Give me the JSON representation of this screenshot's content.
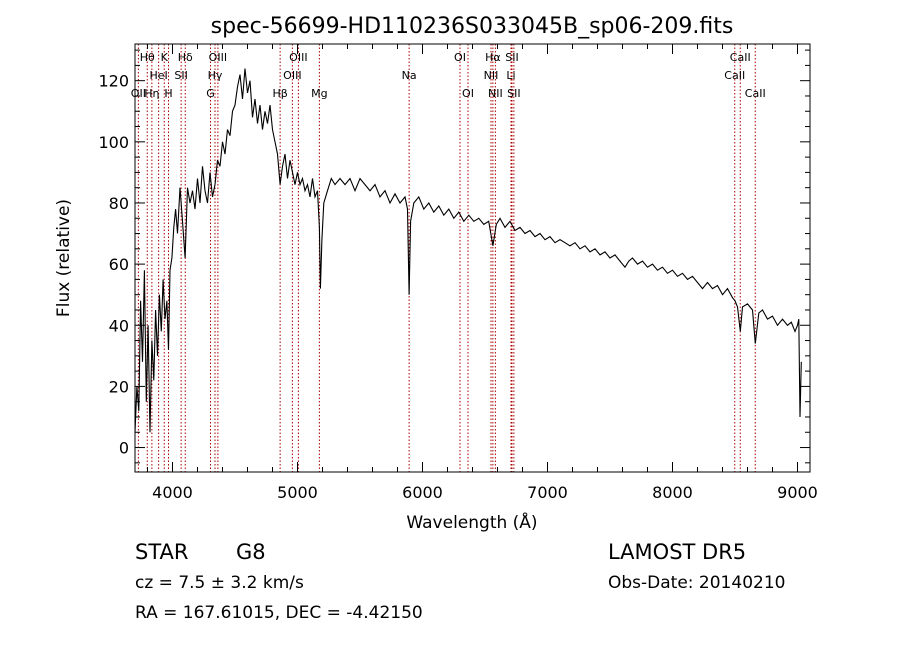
{
  "chart_data": {
    "type": "line",
    "title": "spec-56699-HD110236S033045B_sp06-209.fits",
    "xlabel": "Wavelength (Å)",
    "ylabel": "Flux (relative)",
    "xlim": [
      3700,
      9100
    ],
    "ylim": [
      -8,
      132
    ],
    "xticks": [
      4000,
      5000,
      6000,
      7000,
      8000,
      9000
    ],
    "yticks": [
      0,
      20,
      40,
      60,
      80,
      100,
      120
    ],
    "series": [
      {
        "color": "#000000",
        "points": [
          [
            3700,
            5
          ],
          [
            3715,
            20
          ],
          [
            3730,
            12
          ],
          [
            3745,
            48
          ],
          [
            3760,
            28
          ],
          [
            3775,
            58
          ],
          [
            3790,
            15
          ],
          [
            3805,
            40
          ],
          [
            3820,
            5
          ],
          [
            3835,
            35
          ],
          [
            3850,
            22
          ],
          [
            3865,
            45
          ],
          [
            3880,
            30
          ],
          [
            3895,
            50
          ],
          [
            3910,
            38
          ],
          [
            3925,
            55
          ],
          [
            3940,
            42
          ],
          [
            3955,
            48
          ],
          [
            3968,
            32
          ],
          [
            3980,
            58
          ],
          [
            3995,
            62
          ],
          [
            4010,
            72
          ],
          [
            4025,
            78
          ],
          [
            4040,
            70
          ],
          [
            4060,
            85
          ],
          [
            4080,
            74
          ],
          [
            4101,
            62
          ],
          [
            4120,
            85
          ],
          [
            4140,
            80
          ],
          [
            4160,
            84
          ],
          [
            4180,
            78
          ],
          [
            4200,
            88
          ],
          [
            4220,
            80
          ],
          [
            4240,
            92
          ],
          [
            4260,
            84
          ],
          [
            4280,
            80
          ],
          [
            4300,
            90
          ],
          [
            4320,
            82
          ],
          [
            4340,
            86
          ],
          [
            4360,
            94
          ],
          [
            4380,
            92
          ],
          [
            4400,
            100
          ],
          [
            4420,
            96
          ],
          [
            4440,
            104
          ],
          [
            4460,
            102
          ],
          [
            4480,
            110
          ],
          [
            4500,
            112
          ],
          [
            4520,
            118
          ],
          [
            4540,
            122
          ],
          [
            4560,
            114
          ],
          [
            4580,
            124
          ],
          [
            4600,
            116
          ],
          [
            4620,
            120
          ],
          [
            4640,
            108
          ],
          [
            4660,
            114
          ],
          [
            4680,
            106
          ],
          [
            4700,
            112
          ],
          [
            4720,
            104
          ],
          [
            4740,
            110
          ],
          [
            4760,
            106
          ],
          [
            4780,
            112
          ],
          [
            4800,
            104
          ],
          [
            4820,
            100
          ],
          [
            4840,
            96
          ],
          [
            4861,
            86
          ],
          [
            4880,
            92
          ],
          [
            4900,
            96
          ],
          [
            4920,
            88
          ],
          [
            4940,
            94
          ],
          [
            4960,
            90
          ],
          [
            4980,
            86
          ],
          [
            5000,
            90
          ],
          [
            5020,
            86
          ],
          [
            5040,
            88
          ],
          [
            5060,
            84
          ],
          [
            5080,
            86
          ],
          [
            5100,
            82
          ],
          [
            5120,
            88
          ],
          [
            5140,
            82
          ],
          [
            5160,
            84
          ],
          [
            5175,
            72
          ],
          [
            5183,
            52
          ],
          [
            5195,
            68
          ],
          [
            5210,
            80
          ],
          [
            5240,
            84
          ],
          [
            5270,
            88
          ],
          [
            5300,
            86
          ],
          [
            5340,
            88
          ],
          [
            5380,
            86
          ],
          [
            5420,
            88
          ],
          [
            5460,
            84
          ],
          [
            5500,
            88
          ],
          [
            5540,
            86
          ],
          [
            5580,
            84
          ],
          [
            5620,
            86
          ],
          [
            5660,
            82
          ],
          [
            5700,
            84
          ],
          [
            5740,
            80
          ],
          [
            5780,
            83
          ],
          [
            5820,
            80
          ],
          [
            5860,
            82
          ],
          [
            5880,
            78
          ],
          [
            5893,
            50
          ],
          [
            5905,
            74
          ],
          [
            5930,
            80
          ],
          [
            5970,
            82
          ],
          [
            6010,
            78
          ],
          [
            6050,
            80
          ],
          [
            6090,
            77
          ],
          [
            6130,
            79
          ],
          [
            6170,
            76
          ],
          [
            6210,
            78
          ],
          [
            6250,
            75
          ],
          [
            6290,
            77
          ],
          [
            6330,
            74
          ],
          [
            6370,
            76
          ],
          [
            6410,
            74
          ],
          [
            6450,
            75
          ],
          [
            6490,
            73
          ],
          [
            6530,
            74
          ],
          [
            6563,
            66
          ],
          [
            6590,
            73
          ],
          [
            6620,
            75
          ],
          [
            6660,
            72
          ],
          [
            6700,
            74
          ],
          [
            6740,
            71
          ],
          [
            6780,
            72
          ],
          [
            6820,
            70
          ],
          [
            6860,
            71
          ],
          [
            6900,
            69
          ],
          [
            6940,
            70
          ],
          [
            6980,
            68
          ],
          [
            7020,
            69
          ],
          [
            7060,
            67
          ],
          [
            7100,
            68
          ],
          [
            7140,
            67
          ],
          [
            7180,
            66
          ],
          [
            7220,
            67
          ],
          [
            7260,
            65
          ],
          [
            7300,
            66
          ],
          [
            7340,
            64
          ],
          [
            7380,
            65
          ],
          [
            7420,
            63
          ],
          [
            7460,
            64
          ],
          [
            7500,
            62
          ],
          [
            7540,
            63
          ],
          [
            7580,
            61
          ],
          [
            7620,
            59
          ],
          [
            7650,
            61
          ],
          [
            7680,
            62
          ],
          [
            7720,
            60
          ],
          [
            7760,
            61
          ],
          [
            7800,
            59
          ],
          [
            7840,
            60
          ],
          [
            7880,
            58
          ],
          [
            7920,
            59
          ],
          [
            7960,
            57
          ],
          [
            8000,
            58
          ],
          [
            8040,
            56
          ],
          [
            8080,
            57
          ],
          [
            8120,
            55
          ],
          [
            8160,
            56
          ],
          [
            8200,
            54
          ],
          [
            8240,
            52
          ],
          [
            8280,
            54
          ],
          [
            8320,
            52
          ],
          [
            8360,
            53
          ],
          [
            8400,
            50
          ],
          [
            8440,
            52
          ],
          [
            8480,
            49
          ],
          [
            8500,
            48
          ],
          [
            8520,
            46
          ],
          [
            8542,
            38
          ],
          [
            8560,
            46
          ],
          [
            8600,
            47
          ],
          [
            8640,
            45
          ],
          [
            8662,
            34
          ],
          [
            8690,
            44
          ],
          [
            8720,
            45
          ],
          [
            8760,
            42
          ],
          [
            8800,
            43
          ],
          [
            8840,
            40
          ],
          [
            8880,
            42
          ],
          [
            8920,
            40
          ],
          [
            8950,
            41
          ],
          [
            8980,
            38
          ],
          [
            9000,
            40
          ],
          [
            9010,
            42
          ],
          [
            9020,
            10
          ],
          [
            9030,
            28
          ]
        ]
      }
    ],
    "lines": [
      {
        "wave": 3727,
        "labels": [
          "OII"
        ],
        "row": 2
      },
      {
        "wave": 3798,
        "labels": [
          "Hθ"
        ],
        "row": 0
      },
      {
        "wave": 3835,
        "labels": [
          "Hη"
        ],
        "row": 2
      },
      {
        "wave": 3889,
        "labels": [
          "HeI"
        ],
        "row": 1
      },
      {
        "wave": 3934,
        "labels": [
          "K"
        ],
        "row": 0
      },
      {
        "wave": 3968,
        "labels": [
          "H"
        ],
        "row": 2
      },
      {
        "wave": 4069,
        "labels": [
          "SII"
        ],
        "row": 1
      },
      {
        "wave": 4102,
        "labels": [
          "Hδ"
        ],
        "row": 0
      },
      {
        "wave": 4304,
        "labels": [
          "G"
        ],
        "row": 2
      },
      {
        "wave": 4340,
        "labels": [
          "Hγ"
        ],
        "row": 1
      },
      {
        "wave": 4363,
        "labels": [
          "OIII"
        ],
        "row": 0
      },
      {
        "wave": 4861,
        "labels": [
          "Hβ"
        ],
        "row": 2
      },
      {
        "wave": 4959,
        "labels": [
          "OIII"
        ],
        "row": 1
      },
      {
        "wave": 5007,
        "labels": [
          "OIII"
        ],
        "row": 0
      },
      {
        "wave": 5175,
        "labels": [
          "Mg"
        ],
        "row": 2
      },
      {
        "wave": 5893,
        "labels": [
          "Na"
        ],
        "row": 1
      },
      {
        "wave": 6300,
        "labels": [
          "OI"
        ],
        "row": 0
      },
      {
        "wave": 6364,
        "labels": [
          "OI"
        ],
        "row": 2
      },
      {
        "wave": 6548,
        "labels": [
          "NII"
        ],
        "row": 1
      },
      {
        "wave": 6563,
        "labels": [
          "Hα"
        ],
        "row": 0
      },
      {
        "wave": 6583,
        "labels": [
          "NII"
        ],
        "row": 2
      },
      {
        "wave": 6708,
        "labels": [
          "Li"
        ],
        "row": 1
      },
      {
        "wave": 6716,
        "labels": [
          "SII"
        ],
        "row": 0
      },
      {
        "wave": 6731,
        "labels": [
          "SII"
        ],
        "row": 2
      },
      {
        "wave": 8498,
        "labels": [
          "CaII"
        ],
        "row": 1
      },
      {
        "wave": 8542,
        "labels": [
          "CaII"
        ],
        "row": 0
      },
      {
        "wave": 8662,
        "labels": [
          "CaII"
        ],
        "row": 2
      }
    ],
    "colors": {
      "spectrum": "#000000",
      "lines": "#aa0000",
      "axes": "#000000"
    }
  },
  "info": {
    "class": "STAR",
    "subclass": "G8",
    "cz": "cz = 7.5 ± 3.2 km/s",
    "radec": "RA = 167.61015, DEC =  -4.42150",
    "survey": "LAMOST  DR5",
    "obs_date": "Obs-Date: 20140210"
  }
}
